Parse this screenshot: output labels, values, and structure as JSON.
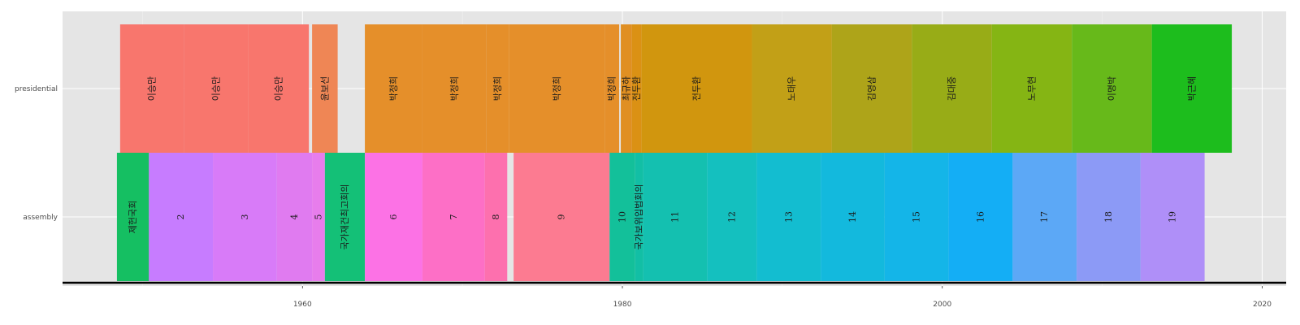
{
  "chart_data": {
    "type": "timeline",
    "xlim": [
      1945,
      2021.5
    ],
    "x_ticks": [
      1960,
      1980,
      2000,
      2020
    ],
    "x_tick_labels": [
      "1960",
      "1980",
      "2000",
      "2020"
    ],
    "grid": true,
    "rows": [
      {
        "name": "presidential",
        "label": "presidential"
      },
      {
        "name": "assembly",
        "label": "assembly"
      }
    ],
    "presidential": [
      {
        "label": "이승만",
        "start": 1948.6,
        "end": 1952.6,
        "color": "#F8766D"
      },
      {
        "label": "이승만",
        "start": 1952.6,
        "end": 1956.6,
        "color": "#F8766D"
      },
      {
        "label": "이승만",
        "start": 1956.6,
        "end": 1960.4,
        "color": "#F8766D"
      },
      {
        "label": "윤보선",
        "start": 1960.6,
        "end": 1962.2,
        "color": "#EF8655"
      },
      {
        "label": "박정희",
        "start": 1963.9,
        "end": 1967.5,
        "color": "#E58F2A"
      },
      {
        "label": "박정희",
        "start": 1967.5,
        "end": 1971.5,
        "color": "#E58F2A"
      },
      {
        "label": "박정희",
        "start": 1971.5,
        "end": 1972.9,
        "color": "#E58F2A"
      },
      {
        "label": "박정희",
        "start": 1972.9,
        "end": 1978.9,
        "color": "#E58F2A"
      },
      {
        "label": "박정희",
        "start": 1978.9,
        "end": 1979.8,
        "color": "#E58F2A"
      },
      {
        "label": "최규하",
        "start": 1979.9,
        "end": 1980.6,
        "color": "#E08F22"
      },
      {
        "label": "전두환",
        "start": 1980.6,
        "end": 1981.2,
        "color": "#DB9114"
      },
      {
        "label": "전두환",
        "start": 1981.2,
        "end": 1988.1,
        "color": "#D1960E"
      },
      {
        "label": "노태우",
        "start": 1988.1,
        "end": 1993.1,
        "color": "#C2A017"
      },
      {
        "label": "김영삼",
        "start": 1993.1,
        "end": 1998.1,
        "color": "#AEA419"
      },
      {
        "label": "김대중",
        "start": 1998.1,
        "end": 2003.1,
        "color": "#98AC17"
      },
      {
        "label": "노무현",
        "start": 2003.1,
        "end": 2008.1,
        "color": "#85B514"
      },
      {
        "label": "이명박",
        "start": 2008.1,
        "end": 2013.1,
        "color": "#67B91A"
      },
      {
        "label": "박근혜",
        "start": 2013.1,
        "end": 2018.1,
        "color": "#1DBD1D"
      }
    ],
    "assembly": [
      {
        "label": "제헌국회",
        "start": 1948.4,
        "end": 1950.4,
        "color": "#15BF62"
      },
      {
        "label": "2",
        "start": 1950.4,
        "end": 1954.4,
        "color": "#C77CFF"
      },
      {
        "label": "3",
        "start": 1954.4,
        "end": 1958.4,
        "color": "#D87BF8"
      },
      {
        "label": "4",
        "start": 1958.4,
        "end": 1960.6,
        "color": "#E07BF0"
      },
      {
        "label": "5",
        "start": 1960.6,
        "end": 1961.4,
        "color": "#E77DEC"
      },
      {
        "label": "국가재건최고회의",
        "start": 1961.4,
        "end": 1963.9,
        "color": "#14C077"
      },
      {
        "label": "6",
        "start": 1963.9,
        "end": 1967.5,
        "color": "#FC72E5"
      },
      {
        "label": "7",
        "start": 1967.5,
        "end": 1971.4,
        "color": "#FD6FC6"
      },
      {
        "label": "8",
        "start": 1971.4,
        "end": 1972.8,
        "color": "#FD70AE"
      },
      {
        "label": "9",
        "start": 1973.2,
        "end": 1979.2,
        "color": "#FC7B91"
      },
      {
        "label": "10",
        "start": 1979.2,
        "end": 1980.8,
        "color": "#13C09A"
      },
      {
        "label": "국가보위입법회의",
        "start": 1980.8,
        "end": 1981.3,
        "color": "#12BFA5"
      },
      {
        "label": "11",
        "start": 1981.3,
        "end": 1985.3,
        "color": "#14C0B0"
      },
      {
        "label": "12",
        "start": 1985.3,
        "end": 1988.4,
        "color": "#14C0BF"
      },
      {
        "label": "13",
        "start": 1988.4,
        "end": 1992.4,
        "color": "#13BDD0"
      },
      {
        "label": "14",
        "start": 1992.4,
        "end": 1996.4,
        "color": "#13B9DD"
      },
      {
        "label": "15",
        "start": 1996.4,
        "end": 2000.4,
        "color": "#14B5E8"
      },
      {
        "label": "16",
        "start": 2000.4,
        "end": 2004.4,
        "color": "#14AEF5"
      },
      {
        "label": "17",
        "start": 2004.4,
        "end": 2008.4,
        "color": "#5CA8F6"
      },
      {
        "label": "18",
        "start": 2008.4,
        "end": 2012.4,
        "color": "#8C9AF6"
      },
      {
        "label": "19",
        "start": 2012.4,
        "end": 2016.4,
        "color": "#AF8FF8"
      }
    ]
  }
}
